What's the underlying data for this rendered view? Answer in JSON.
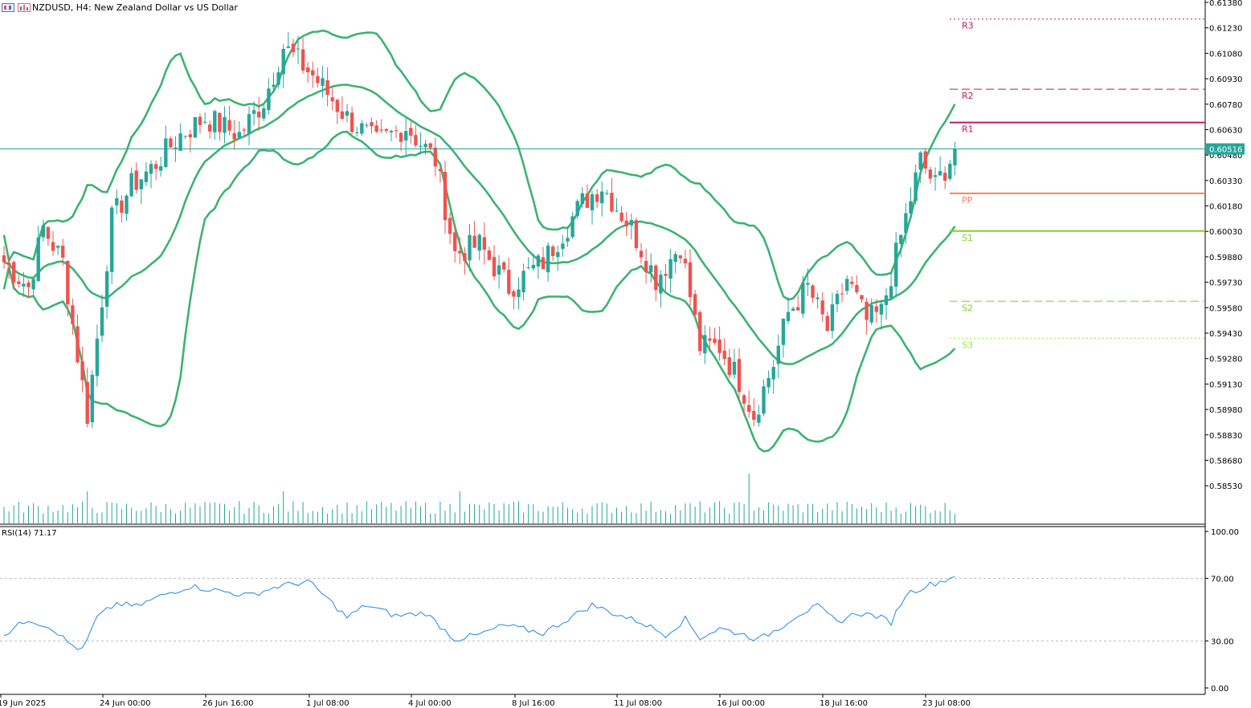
{
  "header": {
    "symbol_title": "NZDUSD, H4:  New Zealand Dollar vs US Dollar",
    "icon_1": "chart-window-icon",
    "icon_2": "chart-bars-icon"
  },
  "price_pane": {
    "current_price_label": "0.60516",
    "current_price": 0.60516,
    "y_ticks": [
      "0.61380",
      "0.61230",
      "0.61080",
      "0.60930",
      "0.60780",
      "0.60630",
      "0.60480",
      "0.60330",
      "0.60180",
      "0.60030",
      "0.59880",
      "0.59730",
      "0.59580",
      "0.59430",
      "0.59280",
      "0.59130",
      "0.58980",
      "0.58830",
      "0.58680",
      "0.58530"
    ],
    "ylim": [
      0.58455,
      0.6138
    ],
    "pivots": [
      {
        "label": "R3",
        "value": 0.61282,
        "color": "#c2185b",
        "style": "dotted"
      },
      {
        "label": "R2",
        "value": 0.60868,
        "color": "#c2185b",
        "style": "dashed"
      },
      {
        "label": "R1",
        "value": 0.60672,
        "color": "#c2185b",
        "style": "solid"
      },
      {
        "label": "PP",
        "value": 0.60254,
        "color": "#f4845f",
        "style": "solid"
      },
      {
        "label": "S1",
        "value": 0.60032,
        "color": "#7fd321",
        "style": "solid"
      },
      {
        "label": "S2",
        "value": 0.59618,
        "color": "#7fd321",
        "style": "dashed"
      },
      {
        "label": "S3",
        "value": 0.594,
        "color": "#9be64a",
        "style": "dotted"
      }
    ]
  },
  "rsi_pane": {
    "label": "RSI(14) 71.17",
    "y_ticks": [
      "100.00",
      "70.00",
      "30.00",
      "0.00"
    ],
    "levels": [
      70,
      30
    ]
  },
  "x_axis": {
    "ticks": [
      "19 Jun 2025",
      "24 Jun 00:00",
      "26 Jun 16:00",
      "1 Jul 08:00",
      "4 Jul 00:00",
      "8 Jul 16:00",
      "11 Jul 08:00",
      "16 Jul 00:00",
      "18 Jul 16:00",
      "23 Jul 08:00"
    ]
  },
  "colors": {
    "bull": "#26a69a",
    "bear": "#ef5350",
    "bands": "#3cb371",
    "rsi": "#1e88e5",
    "price_line": "#26a69a"
  },
  "chart_data": {
    "type": "candlestick",
    "title": "NZDUSD, H4:  New Zealand Dollar vs US Dollar",
    "close_anchors": [
      {
        "bar": 0,
        "close": 0.5985
      },
      {
        "bar": 5,
        "close": 0.597
      },
      {
        "bar": 8,
        "close": 0.6005
      },
      {
        "bar": 12,
        "close": 0.5985
      },
      {
        "bar": 15,
        "close": 0.593
      },
      {
        "bar": 17,
        "close": 0.5895
      },
      {
        "bar": 19,
        "close": 0.594
      },
      {
        "bar": 22,
        "close": 0.601
      },
      {
        "bar": 26,
        "close": 0.603
      },
      {
        "bar": 30,
        "close": 0.604
      },
      {
        "bar": 36,
        "close": 0.606
      },
      {
        "bar": 41,
        "close": 0.607
      },
      {
        "bar": 48,
        "close": 0.606
      },
      {
        "bar": 53,
        "close": 0.608
      },
      {
        "bar": 57,
        "close": 0.6112
      },
      {
        "bar": 63,
        "close": 0.6095
      },
      {
        "bar": 70,
        "close": 0.607
      },
      {
        "bar": 76,
        "close": 0.6055
      },
      {
        "bar": 82,
        "close": 0.6065
      },
      {
        "bar": 88,
        "close": 0.6045
      },
      {
        "bar": 92,
        "close": 0.599
      },
      {
        "bar": 97,
        "close": 0.5995
      },
      {
        "bar": 103,
        "close": 0.597
      },
      {
        "bar": 110,
        "close": 0.5985
      },
      {
        "bar": 118,
        "close": 0.602
      },
      {
        "bar": 122,
        "close": 0.603
      },
      {
        "bar": 128,
        "close": 0.6005
      },
      {
        "bar": 133,
        "close": 0.5975
      },
      {
        "bar": 138,
        "close": 0.5995
      },
      {
        "bar": 142,
        "close": 0.5935
      },
      {
        "bar": 146,
        "close": 0.5935
      },
      {
        "bar": 150,
        "close": 0.5915
      },
      {
        "bar": 153,
        "close": 0.5895
      },
      {
        "bar": 157,
        "close": 0.5925
      },
      {
        "bar": 160,
        "close": 0.5955
      },
      {
        "bar": 164,
        "close": 0.597
      },
      {
        "bar": 168,
        "close": 0.5945
      },
      {
        "bar": 172,
        "close": 0.5975
      },
      {
        "bar": 176,
        "close": 0.595
      },
      {
        "bar": 179,
        "close": 0.5955
      },
      {
        "bar": 183,
        "close": 0.6
      },
      {
        "bar": 187,
        "close": 0.6045
      },
      {
        "bar": 190,
        "close": 0.603
      },
      {
        "bar": 193,
        "close": 0.6045
      },
      {
        "bar": 194,
        "close": 0.60516
      }
    ],
    "bars": 195,
    "rsi_anchors": [
      {
        "bar": 0,
        "v": 34
      },
      {
        "bar": 5,
        "v": 44
      },
      {
        "bar": 10,
        "v": 38
      },
      {
        "bar": 13,
        "v": 29
      },
      {
        "bar": 16,
        "v": 24
      },
      {
        "bar": 19,
        "v": 45
      },
      {
        "bar": 23,
        "v": 54
      },
      {
        "bar": 27,
        "v": 52
      },
      {
        "bar": 33,
        "v": 60
      },
      {
        "bar": 38,
        "v": 65
      },
      {
        "bar": 44,
        "v": 62
      },
      {
        "bar": 50,
        "v": 59
      },
      {
        "bar": 56,
        "v": 65
      },
      {
        "bar": 62,
        "v": 68
      },
      {
        "bar": 65,
        "v": 60
      },
      {
        "bar": 70,
        "v": 45
      },
      {
        "bar": 74,
        "v": 53
      },
      {
        "bar": 80,
        "v": 46
      },
      {
        "bar": 86,
        "v": 48
      },
      {
        "bar": 92,
        "v": 31
      },
      {
        "bar": 97,
        "v": 34
      },
      {
        "bar": 102,
        "v": 40
      },
      {
        "bar": 110,
        "v": 35
      },
      {
        "bar": 115,
        "v": 44
      },
      {
        "bar": 120,
        "v": 53
      },
      {
        "bar": 125,
        "v": 47
      },
      {
        "bar": 130,
        "v": 42
      },
      {
        "bar": 135,
        "v": 34
      },
      {
        "bar": 139,
        "v": 44
      },
      {
        "bar": 142,
        "v": 32
      },
      {
        "bar": 146,
        "v": 38
      },
      {
        "bar": 150,
        "v": 35
      },
      {
        "bar": 154,
        "v": 31
      },
      {
        "bar": 158,
        "v": 38
      },
      {
        "bar": 162,
        "v": 47
      },
      {
        "bar": 166,
        "v": 52
      },
      {
        "bar": 170,
        "v": 42
      },
      {
        "bar": 174,
        "v": 48
      },
      {
        "bar": 178,
        "v": 46
      },
      {
        "bar": 181,
        "v": 42
      },
      {
        "bar": 184,
        "v": 60
      },
      {
        "bar": 188,
        "v": 65
      },
      {
        "bar": 191,
        "v": 68
      },
      {
        "bar": 194,
        "v": 71.17
      }
    ]
  }
}
